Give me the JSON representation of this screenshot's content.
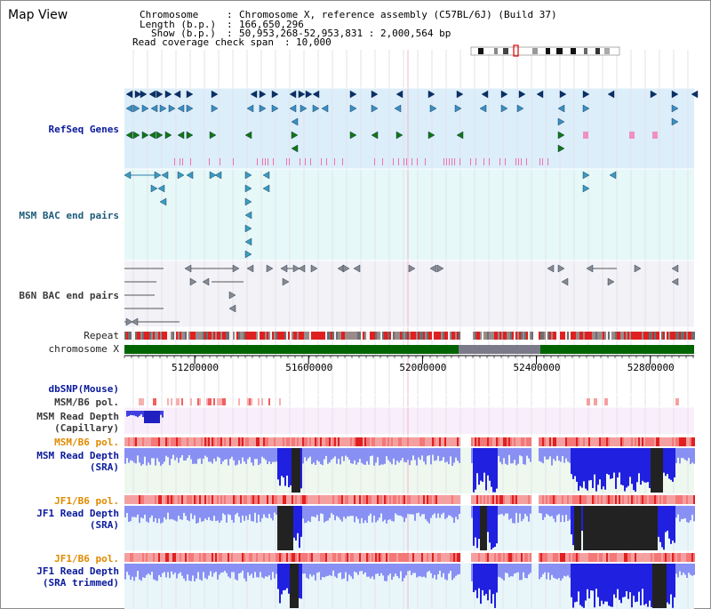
{
  "title": "Map View",
  "info": {
    "chromosome_key": "Chromosome",
    "chromosome_val": "Chromosome X, reference assembly (C57BL/6J) (Build 37)",
    "length_key": "Length (b.p.)",
    "length_val": "166,650,296",
    "show_key": "Show (b.p.)",
    "show_val": "50,953,268-52,953,831 : 2,000,564 bp",
    "coverage_key": "Read coverage check span",
    "coverage_val": "10,000"
  },
  "tracks": {
    "refseq": "RefSeq Genes",
    "msm_bac": "MSM BAC end pairs",
    "b6n_bac": "B6N BAC end pairs",
    "repeat": "Repeat",
    "chromosome": "chromosome X",
    "dbsnp": "dbSNP(Mouse)",
    "msm_b6_pol_cap": "MSM/B6 pol.",
    "msm_depth_cap_1": "MSM Read Depth",
    "msm_depth_cap_2": "(Capillary)",
    "msm_b6_pol_sra": "MSM/B6 pol.",
    "msm_depth_sra_1": "MSM Read Depth",
    "msm_depth_sra_2": "(SRA)",
    "jf1_b6_pol": "JF1/B6 pol.",
    "jf1_depth_1": "JF1 Read Depth",
    "jf1_depth_2": "(SRA)",
    "jf1_b6_pol_trim": "JF1/B6 pol.",
    "jf1_trim_1": "JF1 Read Depth",
    "jf1_trim_2": "(SRA trimmed)"
  },
  "axis": {
    "start": 50953268,
    "end": 52953831,
    "ticks": [
      {
        "value": 51200000,
        "label": "51200000"
      },
      {
        "value": 51600000,
        "label": "51600000"
      },
      {
        "value": 52000000,
        "label": "52000000"
      },
      {
        "value": 52400000,
        "label": "52400000"
      },
      {
        "value": 52800000,
        "label": "52800000"
      }
    ]
  },
  "colors": {
    "refseq_bg": "#dbeefa",
    "msm_bac_bg": "#e6f8f8",
    "b6n_bac_bg": "#f2f2f7",
    "capillary_bg": "#f9eefb",
    "sra_bg": "#eef8ee",
    "jf1_bg": "#e8f6fa",
    "chromosome": "#006400",
    "depth": "#2020e0",
    "depth_light": "#8890f4",
    "depth_dark": "#222222",
    "pol": "#f4a0a0",
    "pol_dark": "#e02020"
  }
}
